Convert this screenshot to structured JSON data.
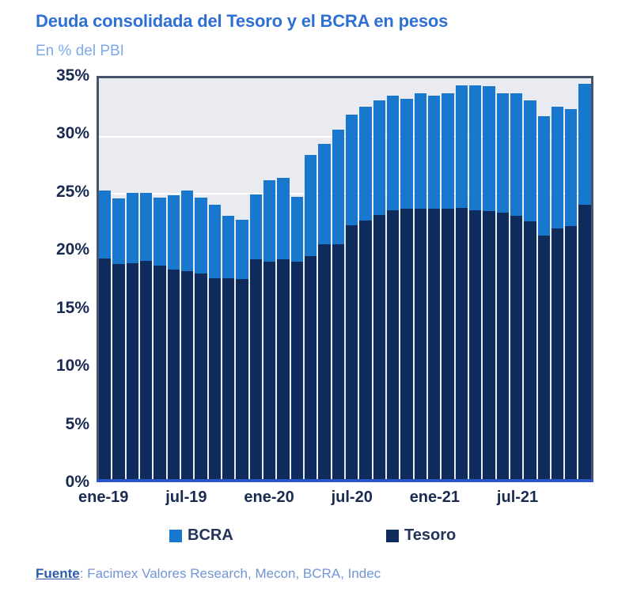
{
  "header": {
    "title": "Deuda consolidada del Tesoro y el BCRA en pesos",
    "subtitle": "En % del PBI"
  },
  "footer": {
    "source_label": "Fuente",
    "source_rest": ": Facimex Valores Research, Mecon, BCRA, Indec"
  },
  "colors": {
    "title": "#2e6fd2",
    "subtitle": "#7fa9e8",
    "axis_text": "#1a2b52",
    "bcra_blue": "#1878cd",
    "tesoro_navy": "#0f2b5b",
    "plot_background": "#e9ebf1",
    "plot_border": "#47536c",
    "baseline_blue": "#2a55c8",
    "gridline": "#ffffff"
  },
  "chart_data": {
    "type": "bar",
    "stacked": true,
    "title": "Deuda consolidada del Tesoro y el BCRA en pesos",
    "subtitle": "En % del PBI",
    "xlabel": "",
    "ylabel": "En % del PBI",
    "ylim": [
      0,
      35
    ],
    "yticks": [
      35,
      30,
      25,
      20,
      15,
      10,
      5,
      0
    ],
    "ytick_labels": [
      "35%",
      "30%",
      "25%",
      "20%",
      "15%",
      "10%",
      "5%",
      "0%"
    ],
    "gridlines_at": [
      30,
      25
    ],
    "grid": true,
    "legend_position": "bottom",
    "legend": [
      "BCRA",
      "Tesoro"
    ],
    "categories": [
      "ene-19",
      "feb-19",
      "mar-19",
      "abr-19",
      "may-19",
      "jun-19",
      "jul-19",
      "ago-19",
      "sep-19",
      "oct-19",
      "nov-19",
      "dic-19",
      "ene-20",
      "feb-20",
      "mar-20",
      "abr-20",
      "may-20",
      "jun-20",
      "jul-20",
      "ago-20",
      "sep-20",
      "oct-20",
      "nov-20",
      "dic-20",
      "ene-21",
      "feb-21",
      "mar-21",
      "abr-21",
      "may-21",
      "jun-21",
      "jul-21",
      "ago-21",
      "sep-21",
      "oct-21",
      "nov-21",
      "dic-21"
    ],
    "xtick_labels_shown": [
      "ene-19",
      "jul-19",
      "ene-20",
      "jul-20",
      "ene-21",
      "jul-21"
    ],
    "xtick_indices": [
      0,
      6,
      12,
      18,
      24,
      30
    ],
    "series": [
      {
        "name": "Tesoro",
        "color": "#0f2b5b",
        "stack_position": "bottom",
        "values": [
          19.3,
          18.8,
          18.9,
          19.1,
          18.7,
          18.3,
          18.2,
          18.0,
          17.6,
          17.6,
          17.5,
          19.2,
          19.0,
          19.2,
          19.0,
          19.5,
          20.5,
          20.5,
          22.2,
          22.6,
          23.1,
          23.5,
          23.6,
          23.6,
          23.6,
          23.6,
          23.7,
          23.5,
          23.4,
          23.3,
          23.0,
          22.5,
          21.3,
          21.9,
          22.1,
          24.0
        ]
      },
      {
        "name": "BCRA",
        "color": "#1878cd",
        "stack_position": "top",
        "values": [
          5.9,
          5.7,
          6.1,
          5.9,
          5.9,
          6.5,
          7.0,
          6.6,
          6.4,
          5.4,
          5.2,
          5.7,
          7.1,
          7.1,
          5.7,
          8.8,
          8.8,
          10.0,
          9.6,
          9.9,
          10.0,
          10.0,
          9.6,
          10.1,
          9.9,
          10.1,
          10.7,
          10.9,
          10.9,
          10.4,
          10.7,
          10.6,
          10.4,
          10.6,
          10.2,
          10.5
        ]
      }
    ],
    "totals": [
      25.2,
      24.5,
      25.0,
      25.0,
      24.6,
      24.8,
      25.2,
      24.6,
      24.0,
      23.0,
      22.7,
      24.9,
      26.1,
      26.3,
      24.7,
      28.3,
      29.3,
      30.5,
      31.8,
      32.5,
      33.1,
      33.5,
      33.2,
      33.7,
      33.5,
      33.7,
      34.4,
      34.4,
      34.3,
      33.7,
      33.7,
      33.1,
      31.7,
      32.5,
      32.3,
      34.5
    ]
  }
}
